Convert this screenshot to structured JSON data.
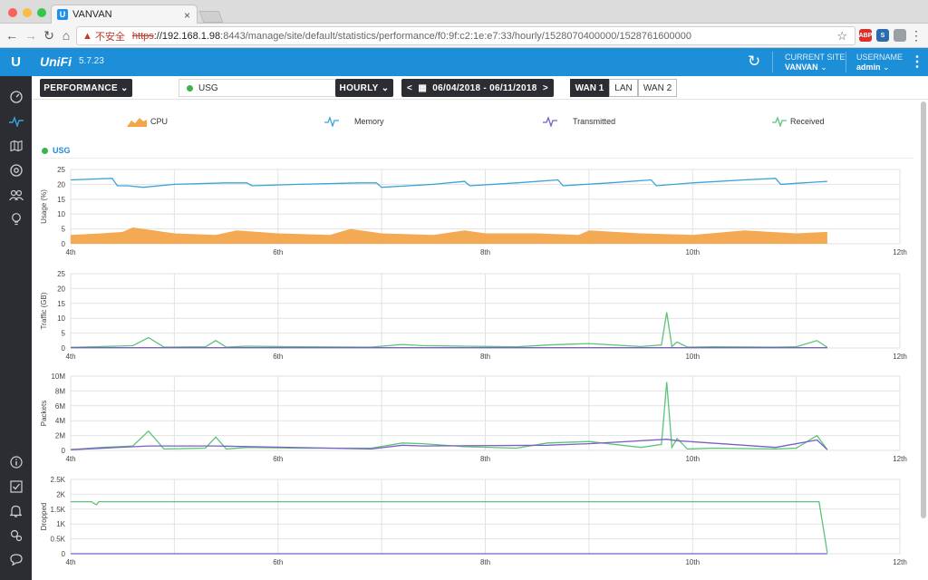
{
  "browser": {
    "tab_title": "VANVAN",
    "tab_favicon": "U",
    "tab_close": "×",
    "insecure_label": "不安全",
    "url_scheme": "https",
    "url_host": "://192.168.1.98",
    "url_rest": ":8443/manage/site/default/statistics/performance/f0:9f:c2:1e:e7:33/hourly/1528070400000/1528761600000",
    "extensions": [
      {
        "name": "adblock-icon",
        "text": "ABP",
        "color": "#d9302c"
      },
      {
        "name": "cast-icon",
        "text": "S",
        "color": "#2b6cb0"
      },
      {
        "name": "pointer-extension-icon",
        "text": "",
        "color": "#9aa0a6"
      }
    ]
  },
  "header": {
    "logo": "U",
    "brand": "UniFi",
    "version": "5.7.23",
    "site_label": "CURRENT SITE",
    "site_value": "VANVAN",
    "user_label": "USERNAME",
    "user_value": "admin",
    "color": "#1d8ed8"
  },
  "sidebar": {
    "icons": [
      "dashboard-icon",
      "statistics-icon",
      "map-icon",
      "devices-icon",
      "clients-icon",
      "insights-icon",
      "info-icon",
      "tasks-icon",
      "alerts-icon",
      "settings-icon",
      "chat-icon"
    ]
  },
  "toolbar": {
    "view_dropdown": "PERFORMANCE",
    "device_select": "USG",
    "interval_dropdown": "HOURLY",
    "date_range": "06/04/2018 - 06/11/2018",
    "wan_tabs": [
      {
        "label": "WAN 1",
        "active": true
      },
      {
        "label": "LAN",
        "active": false
      },
      {
        "label": "WAN 2",
        "active": false
      }
    ]
  },
  "legend": [
    {
      "label": "CPU",
      "color": "#f2a54a",
      "icon": "cpu-area-icon"
    },
    {
      "label": "Memory",
      "color": "#3aa3d9",
      "icon": "memory-line-icon"
    },
    {
      "label": "Transmitted",
      "color": "#7b5ec6",
      "icon": "transmitted-line-icon"
    },
    {
      "label": "Received",
      "color": "#5cc47a",
      "icon": "received-line-icon"
    }
  ],
  "device_label": "USG",
  "chart_data": [
    {
      "type": "area",
      "ylabel": "Usage (%)",
      "yticks": [
        "25",
        "20",
        "15",
        "10",
        "5",
        "0"
      ],
      "ylim": [
        0,
        25
      ],
      "xticks": [
        "4th",
        "6th",
        "8th",
        "10th",
        "12th"
      ],
      "grid": true,
      "series": [
        {
          "name": "Memory",
          "type": "line",
          "color": "#3aa3d9",
          "x": [
            4.0,
            4.4,
            4.45,
            4.55,
            4.7,
            5.0,
            5.5,
            5.7,
            5.75,
            6.2,
            6.8,
            6.95,
            7.0,
            7.5,
            7.8,
            7.85,
            8.3,
            8.7,
            8.75,
            9.2,
            9.6,
            9.65,
            10.0,
            10.5,
            10.8,
            10.85,
            11.3
          ],
          "values": [
            21.5,
            22.0,
            19.5,
            19.5,
            19.0,
            20.0,
            20.5,
            20.5,
            19.5,
            20.0,
            20.5,
            20.5,
            19.0,
            20.0,
            21.0,
            19.5,
            20.5,
            21.5,
            19.5,
            20.5,
            21.5,
            19.5,
            20.5,
            21.5,
            22.0,
            20.0,
            21.0
          ]
        },
        {
          "name": "CPU",
          "type": "area",
          "color": "#f2a54a",
          "x": [
            4.0,
            4.3,
            4.5,
            4.6,
            5.0,
            5.4,
            5.6,
            6.0,
            6.5,
            6.7,
            7.0,
            7.5,
            7.8,
            8.0,
            8.5,
            8.9,
            9.0,
            9.5,
            10.0,
            10.5,
            11.0,
            11.3
          ],
          "values": [
            3.0,
            3.5,
            4.0,
            5.5,
            3.5,
            3.0,
            4.5,
            3.5,
            3.0,
            5.0,
            3.5,
            3.0,
            4.5,
            3.5,
            3.5,
            3.0,
            4.5,
            3.5,
            3.0,
            4.5,
            3.5,
            4.0
          ]
        }
      ]
    },
    {
      "type": "line",
      "ylabel": "Traffic (GB)",
      "yticks": [
        "25",
        "20",
        "15",
        "10",
        "5",
        "0"
      ],
      "ylim": [
        0,
        25
      ],
      "xticks": [
        "4th",
        "6th",
        "8th",
        "10th",
        "12th"
      ],
      "grid": true,
      "series": [
        {
          "name": "Received",
          "color": "#5cc47a",
          "x": [
            4.0,
            4.3,
            4.6,
            4.75,
            4.9,
            5.3,
            5.4,
            5.5,
            5.7,
            6.2,
            6.9,
            7.2,
            7.4,
            7.8,
            8.3,
            8.6,
            9.0,
            9.5,
            9.7,
            9.75,
            9.8,
            9.85,
            9.95,
            10.2,
            10.8,
            11.0,
            11.2,
            11.3
          ],
          "values": [
            0.2,
            0.5,
            0.8,
            3.5,
            0.3,
            0.4,
            2.5,
            0.3,
            0.6,
            0.4,
            0.3,
            1.2,
            0.8,
            0.6,
            0.4,
            1.0,
            1.5,
            0.5,
            1.0,
            12.0,
            0.5,
            2.0,
            0.3,
            0.4,
            0.3,
            0.4,
            2.5,
            0.2
          ]
        },
        {
          "name": "Transmitted",
          "color": "#7b5ec6",
          "x": [
            4.0,
            5.0,
            6.0,
            7.0,
            8.0,
            9.0,
            10.0,
            11.0,
            11.3
          ],
          "values": [
            0.1,
            0.1,
            0.1,
            0.1,
            0.1,
            0.1,
            0.1,
            0.1,
            0.1
          ]
        }
      ]
    },
    {
      "type": "line",
      "ylabel": "Packets",
      "yticks": [
        "10M",
        "8M",
        "6M",
        "4M",
        "2M",
        "0"
      ],
      "ylim": [
        0,
        10
      ],
      "xticks": [
        "4th",
        "6th",
        "8th",
        "10th",
        "12th"
      ],
      "grid": true,
      "series": [
        {
          "name": "Received",
          "color": "#5cc47a",
          "x": [
            4.0,
            4.3,
            4.6,
            4.75,
            4.9,
            5.3,
            5.4,
            5.5,
            5.7,
            6.2,
            6.9,
            7.2,
            7.4,
            7.8,
            8.3,
            8.6,
            9.0,
            9.5,
            9.7,
            9.75,
            9.8,
            9.85,
            9.95,
            10.2,
            10.8,
            11.0,
            11.2,
            11.3
          ],
          "values": [
            0.1,
            0.4,
            0.6,
            2.6,
            0.2,
            0.3,
            1.8,
            0.2,
            0.4,
            0.3,
            0.3,
            1.0,
            0.9,
            0.5,
            0.3,
            1.0,
            1.2,
            0.4,
            0.8,
            9.2,
            0.4,
            1.6,
            0.2,
            0.3,
            0.2,
            0.3,
            2.0,
            0.1
          ]
        },
        {
          "name": "Transmitted",
          "color": "#7b5ec6",
          "x": [
            4.0,
            4.75,
            5.4,
            6.9,
            7.2,
            7.4,
            8.6,
            9.0,
            9.75,
            9.85,
            10.8,
            11.2,
            11.3
          ],
          "values": [
            0.1,
            0.6,
            0.6,
            0.2,
            0.7,
            0.6,
            0.7,
            0.9,
            1.5,
            1.3,
            0.4,
            1.4,
            0.1
          ]
        }
      ]
    },
    {
      "type": "line",
      "ylabel": "Dropped",
      "yticks": [
        "2.5K",
        "2K",
        "1.5K",
        "1K",
        "0.5K",
        "0"
      ],
      "ylim": [
        0,
        2500
      ],
      "xticks": [
        "4th",
        "6th",
        "8th",
        "10th",
        "12th"
      ],
      "grid": true,
      "series": [
        {
          "name": "Received",
          "color": "#5cc47a",
          "x": [
            4.0,
            4.2,
            4.22,
            4.25,
            4.27,
            4.3,
            5.0,
            6.0,
            7.0,
            8.0,
            9.0,
            10.0,
            11.0,
            11.22,
            11.3
          ],
          "values": [
            1750,
            1750,
            1700,
            1650,
            1750,
            1750,
            1750,
            1750,
            1750,
            1750,
            1750,
            1750,
            1750,
            1750,
            30
          ]
        },
        {
          "name": "Transmitted",
          "color": "#7b5ec6",
          "x": [
            4.0,
            11.3
          ],
          "values": [
            0,
            0
          ]
        }
      ]
    }
  ]
}
